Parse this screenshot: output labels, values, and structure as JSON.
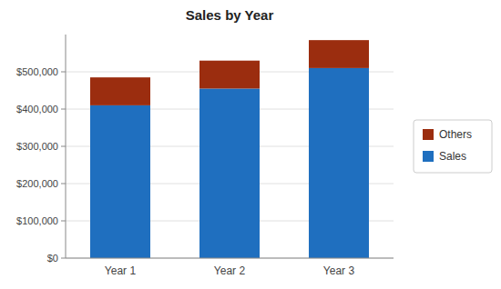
{
  "chart_data": {
    "type": "bar",
    "title": "Sales by Year",
    "stacked": true,
    "grid": true,
    "legend": "right",
    "categories": [
      "Year 1",
      "Year 2",
      "Year 3"
    ],
    "series": [
      {
        "name": "Sales",
        "color": "#1F6FBF",
        "values": [
          410000,
          455000,
          510000
        ]
      },
      {
        "name": "Others",
        "color": "#9B2D0F",
        "values": [
          75000,
          75000,
          75000
        ]
      }
    ],
    "ylim": [
      0,
      600000
    ],
    "yticks": [
      {
        "value": 0,
        "label": "$0"
      },
      {
        "value": 100000,
        "label": "$100,000"
      },
      {
        "value": 200000,
        "label": "$200,000"
      },
      {
        "value": 300000,
        "label": "$300,000"
      },
      {
        "value": 400000,
        "label": "$400,000"
      },
      {
        "value": 500000,
        "label": "$500,000"
      }
    ]
  }
}
